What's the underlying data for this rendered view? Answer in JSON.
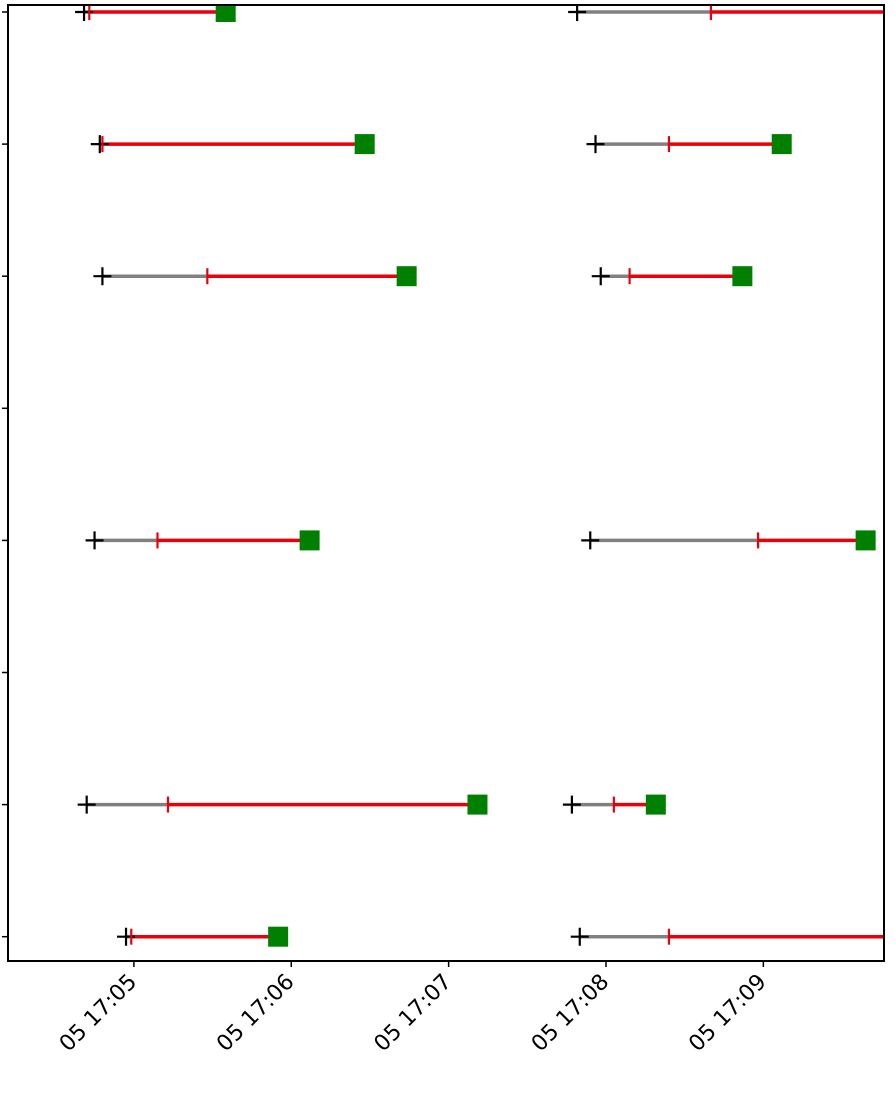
{
  "chart_data": {
    "type": "timeline",
    "x_axis": {
      "type": "time",
      "range": [
        "05 17:04:12",
        "05 17:09:46"
      ],
      "tick_values": [
        "17:05:00",
        "17:06:00",
        "17:07:00",
        "17:08:00",
        "17:09:00"
      ],
      "tick_labels": [
        "05 17:05",
        "05 17:06",
        "05 17:07",
        "05 17:08",
        "05 17:09"
      ]
    },
    "y_axis": {
      "rows": 8,
      "tick_labels": []
    },
    "grid": false,
    "colors": {
      "waiting": "#808080",
      "running": "#e8000b",
      "finish_marker": "#008000",
      "start_marker": "#000000"
    },
    "tasks": [
      {
        "row": 0,
        "start": "17:04:41",
        "run": "17:04:43",
        "end": "17:05:35"
      },
      {
        "row": 0,
        "start": "17:07:49",
        "run": "17:08:40",
        "end": "17:10:01"
      },
      {
        "row": 1,
        "start": "17:04:47",
        "run": "17:04:48",
        "end": "17:06:28"
      },
      {
        "row": 1,
        "start": "17:07:56",
        "run": "17:08:24",
        "end": "17:09:07"
      },
      {
        "row": 2,
        "start": "17:04:48",
        "run": "17:05:28",
        "end": "17:06:44"
      },
      {
        "row": 2,
        "start": "17:07:58",
        "run": "17:08:09",
        "end": "17:08:52"
      },
      {
        "row": 4,
        "start": "17:04:45",
        "run": "17:05:09",
        "end": "17:06:07"
      },
      {
        "row": 4,
        "start": "17:07:54",
        "run": "17:08:58",
        "end": "17:09:39"
      },
      {
        "row": 6,
        "start": "17:04:42",
        "run": "17:05:13",
        "end": "17:07:11"
      },
      {
        "row": 6,
        "start": "17:07:47",
        "run": "17:08:03",
        "end": "17:08:19"
      },
      {
        "row": 7,
        "start": "17:04:57",
        "run": "17:04:59",
        "end": "17:05:55"
      },
      {
        "row": 7,
        "start": "17:07:50",
        "run": "17:08:24",
        "end": "17:10:01"
      }
    ]
  }
}
